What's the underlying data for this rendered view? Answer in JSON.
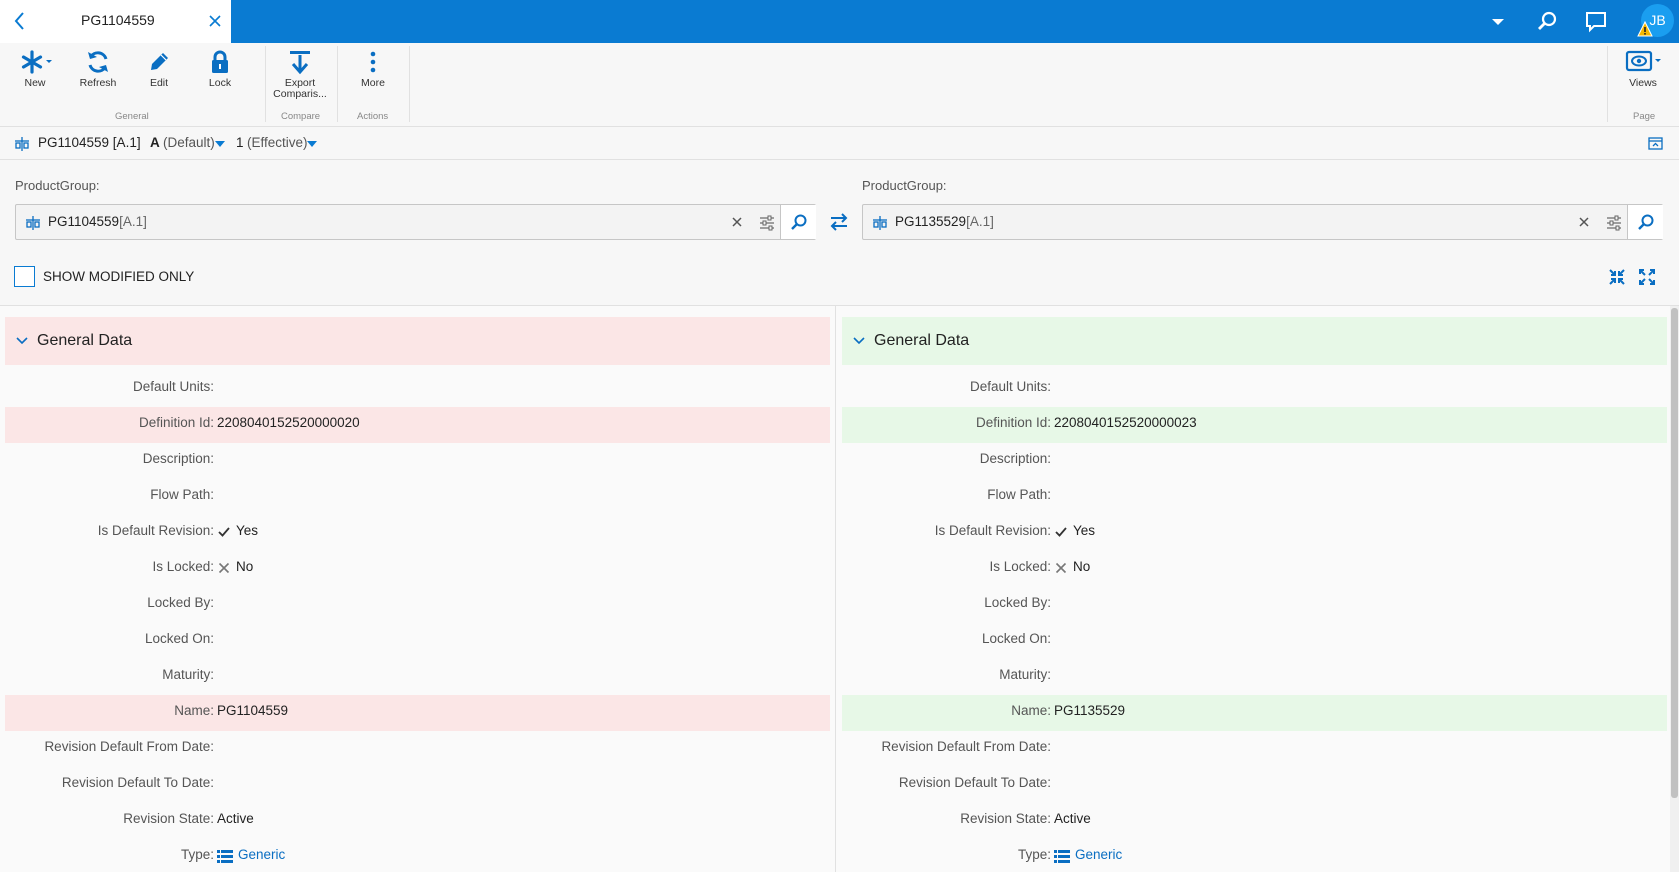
{
  "tab": {
    "title": "PG1104559"
  },
  "user": {
    "initials": "JB"
  },
  "ribbon": {
    "buttons": {
      "new": "New",
      "refresh": "Refresh",
      "edit": "Edit",
      "lock": "Lock",
      "export_line1": "Export",
      "export_line2": "Comparis...",
      "more": "More",
      "views": "Views"
    },
    "groups": {
      "general": "General",
      "compare": "Compare",
      "actions": "Actions",
      "page": "Page"
    }
  },
  "breadcrumb": {
    "item": "PG1104559 [A.1]",
    "revision_letter": "A",
    "revision_label": "(Default)",
    "iteration_num": "1",
    "iteration_label": "(Effective)"
  },
  "selectors": {
    "left": {
      "label": "ProductGroup:",
      "value": "PG1104559",
      "rev": "[A.1]"
    },
    "right": {
      "label": "ProductGroup:",
      "value": "PG1135529",
      "rev": "[A.1]"
    }
  },
  "show_modified_only": {
    "label": "SHOW MODIFIED ONLY",
    "checked": false
  },
  "compare": {
    "section_title": "General Data",
    "labels": {
      "default_units": "Default Units:",
      "definition_id": "Definition Id:",
      "description": "Description:",
      "flow_path": "Flow Path:",
      "is_default_revision": "Is Default Revision:",
      "is_locked": "Is Locked:",
      "locked_by": "Locked By:",
      "locked_on": "Locked On:",
      "maturity": "Maturity:",
      "name": "Name:",
      "rev_default_from": "Revision Default From Date:",
      "rev_default_to": "Revision Default To Date:",
      "revision_state": "Revision State:",
      "type": "Type:"
    },
    "left": {
      "definition_id": "2208040152520000020",
      "is_default_revision": "Yes",
      "is_locked": "No",
      "name": "PG1104559",
      "revision_state": "Active",
      "type": "Generic"
    },
    "right": {
      "definition_id": "2208040152520000023",
      "is_default_revision": "Yes",
      "is_locked": "No",
      "name": "PG1135529",
      "revision_state": "Active",
      "type": "Generic"
    }
  },
  "colors": {
    "brand": "#0a7bd2",
    "diff_left": "#fbe6e6",
    "diff_right": "#e7f8e7"
  }
}
